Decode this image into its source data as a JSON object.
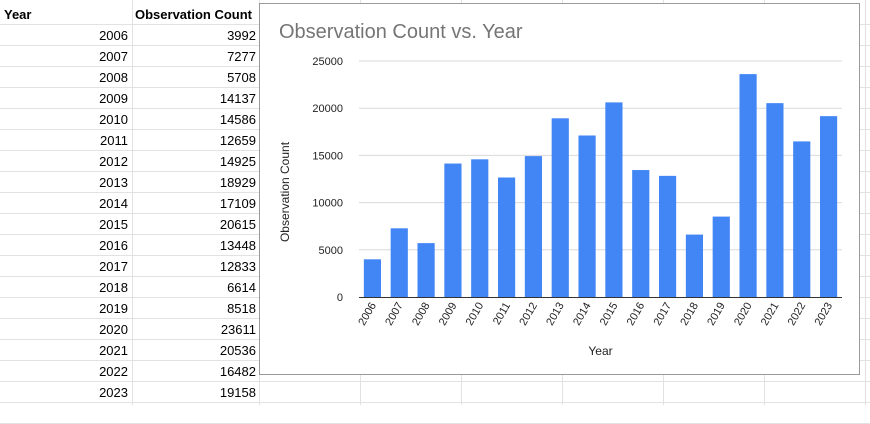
{
  "table": {
    "headers": {
      "year": "Year",
      "count": "Observation Count"
    },
    "rows": [
      {
        "year": "2006",
        "count": "3992"
      },
      {
        "year": "2007",
        "count": "7277"
      },
      {
        "year": "2008",
        "count": "5708"
      },
      {
        "year": "2009",
        "count": "14137"
      },
      {
        "year": "2010",
        "count": "14586"
      },
      {
        "year": "2011",
        "count": "12659"
      },
      {
        "year": "2012",
        "count": "14925"
      },
      {
        "year": "2013",
        "count": "18929"
      },
      {
        "year": "2014",
        "count": "17109"
      },
      {
        "year": "2015",
        "count": "20615"
      },
      {
        "year": "2016",
        "count": "13448"
      },
      {
        "year": "2017",
        "count": "12833"
      },
      {
        "year": "2018",
        "count": "6614"
      },
      {
        "year": "2019",
        "count": "8518"
      },
      {
        "year": "2020",
        "count": "23611"
      },
      {
        "year": "2021",
        "count": "20536"
      },
      {
        "year": "2022",
        "count": "16482"
      },
      {
        "year": "2023",
        "count": "19158"
      }
    ]
  },
  "chart_data": {
    "type": "bar",
    "title": "Observation Count vs. Year",
    "xlabel": "Year",
    "ylabel": "Observation Count",
    "ylim": [
      0,
      25000
    ],
    "yticks": [
      0,
      5000,
      10000,
      15000,
      20000,
      25000
    ],
    "grid": true,
    "bar_color": "#4285f4",
    "categories": [
      "2006",
      "2007",
      "2008",
      "2009",
      "2010",
      "2011",
      "2012",
      "2013",
      "2014",
      "2015",
      "2016",
      "2017",
      "2018",
      "2019",
      "2020",
      "2021",
      "2022",
      "2023"
    ],
    "values": [
      3992,
      7277,
      5708,
      14137,
      14586,
      12659,
      14925,
      18929,
      17109,
      20615,
      13448,
      12833,
      6614,
      8518,
      23611,
      20536,
      16482,
      19158
    ]
  }
}
